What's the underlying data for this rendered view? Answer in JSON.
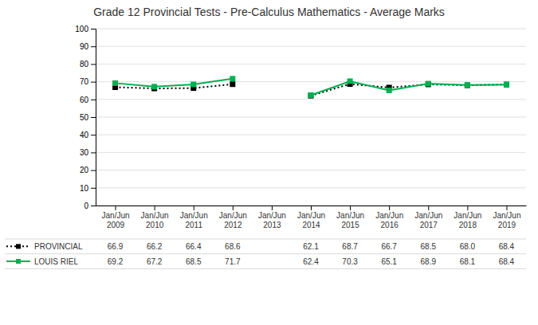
{
  "chart_data": {
    "type": "line",
    "title": "Grade 12 Provincial Tests - Pre-Calculus Mathematics - Average Marks",
    "categories": [
      "Jan/Jun\n2009",
      "Jan/Jun\n2010",
      "Jan/Jun\n2011",
      "Jan/Jun\n2012",
      "Jan/Jun\n2013",
      "Jan/Jun\n2014",
      "Jan/Jun\n2015",
      "Jan/Jun\n2016",
      "Jan/Jun\n2017",
      "Jan/Jun\n2018",
      "Jan/Jun\n2019"
    ],
    "series": [
      {
        "name": "PROVINCIAL",
        "color": "#000000",
        "line_style": "dotted",
        "marker": "square",
        "values": [
          66.9,
          66.2,
          66.4,
          68.6,
          null,
          62.1,
          68.7,
          66.7,
          68.5,
          68.0,
          68.4
        ],
        "value_labels": [
          "66.9",
          "66.2",
          "66.4",
          "68.6",
          null,
          "62.1",
          "68.7",
          "66.7",
          "68.5",
          "68.0",
          "68.4"
        ]
      },
      {
        "name": "LOUIS RIEL",
        "color": "#00b050",
        "line_style": "solid",
        "marker": "square",
        "values": [
          69.2,
          67.2,
          68.5,
          71.7,
          null,
          62.4,
          70.3,
          65.1,
          68.9,
          68.1,
          68.4
        ],
        "value_labels": [
          "69.2",
          "67.2",
          "68.5",
          "71.7",
          null,
          "62.4",
          "70.3",
          "65.1",
          "68.9",
          "68.1",
          "68.4"
        ]
      }
    ],
    "ylim": [
      0,
      100
    ],
    "yticks": [
      0,
      10,
      20,
      30,
      40,
      50,
      60,
      70,
      80,
      90,
      100
    ],
    "grid": true,
    "data_labels": true
  }
}
